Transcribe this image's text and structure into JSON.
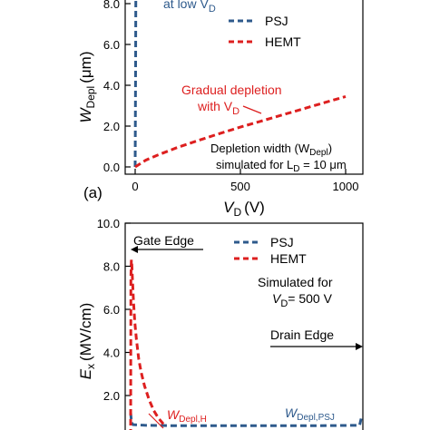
{
  "colors": {
    "psj": "#2e5a8c",
    "hemt": "#dd1f1f",
    "axis": "#000000"
  },
  "chart_data": [
    {
      "type": "line",
      "panel_label": "(a)",
      "xlabel": "V",
      "xlabel_sub": "D",
      "xlabel_unit": "(V)",
      "ylabel": "W",
      "ylabel_sub": "Depl",
      "ylabel_unit": "(μm)",
      "xlim": [
        -20,
        1030
      ],
      "ylim": [
        -0.3,
        8.1
      ],
      "xticks": [
        0,
        500,
        1000
      ],
      "xtick_labels": [
        "0",
        "500",
        "1000"
      ],
      "yticks": [
        0,
        2,
        4,
        6,
        8
      ],
      "ytick_labels": [
        "0.0",
        "2.0",
        "4.0",
        "6.0",
        "8.0"
      ],
      "legend_position": "top-right",
      "series": [
        {
          "name": "PSJ",
          "style": "dashed",
          "color": "#2e5a8c",
          "x": [
            0,
            1,
            2,
            3,
            5
          ],
          "y": [
            0.0,
            2.0,
            5.0,
            8.0,
            10.0
          ]
        },
        {
          "name": "HEMT",
          "style": "dashed",
          "color": "#dd1f1f",
          "x": [
            0,
            50,
            100,
            200,
            300,
            400,
            500,
            600,
            700,
            800,
            900,
            1000
          ],
          "y": [
            0.0,
            0.33,
            0.55,
            0.95,
            1.3,
            1.63,
            1.95,
            2.25,
            2.55,
            2.85,
            3.15,
            3.45
          ]
        }
      ],
      "annotations": {
        "top_partial": {
          "text": "at low V",
          "sub": "D"
        },
        "gradual": {
          "line1": "Gradual depletion",
          "line2": "with V",
          "line2_sub": "D"
        },
        "depletion": {
          "line1": "Depletion width (W",
          "line1_sub": "Depl",
          "line1_end": ")",
          "line2": "simulated for L",
          "line2_sub": "D",
          "line2_end": " = 10 μm"
        }
      }
    },
    {
      "type": "line",
      "ylabel": "E",
      "ylabel_sub": "x",
      "ylabel_unit": "(MV/cm)",
      "xlim": [
        0,
        1000
      ],
      "ylim": [
        0.6,
        10.0
      ],
      "yticks": [
        2,
        4,
        6,
        8,
        10
      ],
      "ytick_labels": [
        "2.0",
        "4.0",
        "6.0",
        "8.0",
        "10.0"
      ],
      "legend_position": "top-right",
      "series": [
        {
          "name": "PSJ",
          "style": "dashed",
          "color": "#2e5a8c",
          "x": [
            0,
            4,
            10,
            60,
            200,
            400,
            600,
            800,
            990,
            998
          ],
          "y": [
            1.2,
            0.75,
            0.65,
            0.62,
            0.6,
            0.6,
            0.6,
            0.6,
            0.62,
            1.0
          ]
        },
        {
          "name": "HEMT",
          "style": "dashed",
          "color": "#dd1f1f",
          "x": [
            0,
            1,
            3,
            5,
            8,
            12,
            18,
            25,
            35,
            45,
            60,
            80,
            100,
            120,
            140,
            155
          ],
          "y": [
            0.0,
            7.5,
            8.3,
            8.1,
            7.4,
            6.4,
            5.4,
            4.6,
            3.7,
            3.1,
            2.45,
            1.8,
            1.3,
            0.95,
            0.7,
            0.6
          ]
        }
      ],
      "annotations": {
        "gate_edge": "Gate Edge",
        "drain_edge": "Drain Edge",
        "simulated": {
          "line1": "Simulated for",
          "line2": "V",
          "line2_sub": "D",
          "line2_end": "= 500 V"
        },
        "wdepl_h": {
          "text": "W",
          "sub": "Depl,H"
        },
        "wdepl_psj": {
          "text": "W",
          "sub": "Depl,PSJ"
        }
      }
    }
  ]
}
